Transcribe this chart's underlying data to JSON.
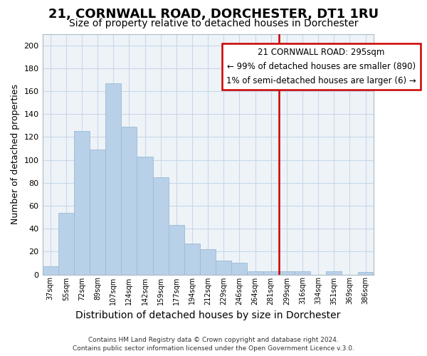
{
  "title": "21, CORNWALL ROAD, DORCHESTER, DT1 1RU",
  "subtitle": "Size of property relative to detached houses in Dorchester",
  "xlabel": "Distribution of detached houses by size in Dorchester",
  "ylabel": "Number of detached properties",
  "categories": [
    "37sqm",
    "55sqm",
    "72sqm",
    "89sqm",
    "107sqm",
    "124sqm",
    "142sqm",
    "159sqm",
    "177sqm",
    "194sqm",
    "212sqm",
    "229sqm",
    "246sqm",
    "264sqm",
    "281sqm",
    "299sqm",
    "316sqm",
    "334sqm",
    "351sqm",
    "369sqm",
    "386sqm"
  ],
  "values": [
    7,
    54,
    125,
    109,
    167,
    129,
    103,
    85,
    43,
    27,
    22,
    12,
    10,
    3,
    3,
    3,
    3,
    0,
    3,
    0,
    2
  ],
  "bar_color": "#b8d0e8",
  "bar_edge_color": "#9bbcd4",
  "red_line_x": 15,
  "annotation_line1": "21 CORNWALL ROAD: 295sqm",
  "annotation_line2": "← 99% of detached houses are smaller (890)",
  "annotation_line3": "1% of semi-detached houses are larger (6) →",
  "annotation_border_color": "#cc0000",
  "annotation_fontsize": 8.5,
  "title_fontsize": 13,
  "subtitle_fontsize": 10,
  "xlabel_fontsize": 10,
  "ylabel_fontsize": 9,
  "footer_line1": "Contains HM Land Registry data © Crown copyright and database right 2024.",
  "footer_line2": "Contains public sector information licensed under the Open Government Licence v.3.0.",
  "ylim": [
    0,
    210
  ],
  "yticks": [
    0,
    20,
    40,
    60,
    80,
    100,
    120,
    140,
    160,
    180,
    200
  ],
  "grid_color": "#c8d8e8",
  "plot_bg_color": "#eef3f8",
  "background_color": "#ffffff"
}
